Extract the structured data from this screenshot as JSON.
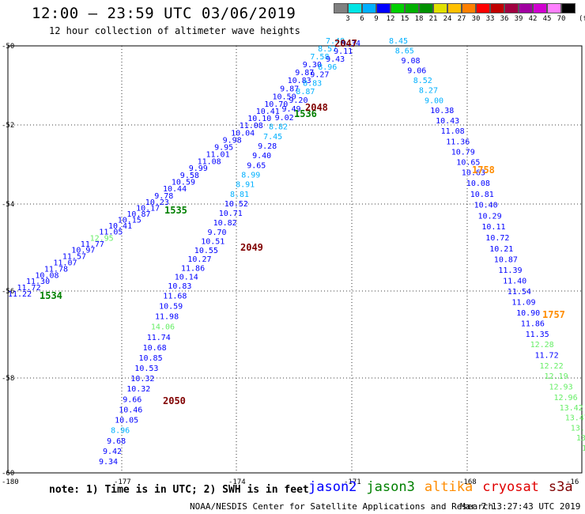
{
  "title": "12:00 — 23:59 UTC 03/06/2019",
  "subtitle": "12 hour collection of altimeter wave heights",
  "legend": {
    "unit": "(ft)",
    "levels": [
      {
        "label": "3",
        "color": "#808080"
      },
      {
        "label": "6",
        "color": "#00e5e5"
      },
      {
        "label": "9",
        "color": "#00b0ff"
      },
      {
        "label": "12",
        "color": "#0000ff"
      },
      {
        "label": "15",
        "color": "#00d000"
      },
      {
        "label": "18",
        "color": "#00b000"
      },
      {
        "label": "21",
        "color": "#009000"
      },
      {
        "label": "24",
        "color": "#e0e000"
      },
      {
        "label": "27",
        "color": "#ffc000"
      },
      {
        "label": "30",
        "color": "#ff8000"
      },
      {
        "label": "33",
        "color": "#ff0000"
      },
      {
        "label": "36",
        "color": "#c00000"
      },
      {
        "label": "39",
        "color": "#a00040"
      },
      {
        "label": "42",
        "color": "#a000a0"
      },
      {
        "label": "45",
        "color": "#d000d0"
      },
      {
        "label": "70",
        "color": "#ff80ff"
      },
      {
        "label": "",
        "color": "#000000"
      }
    ]
  },
  "axes": {
    "lon_ticks": [
      "-180",
      "-177",
      "-174",
      "-171",
      "-168",
      "-16"
    ],
    "lat_ticks": [
      "-50",
      "-52",
      "-54",
      "-56",
      "-58",
      "-60"
    ]
  },
  "tracks": [
    {
      "id": "track-a",
      "points": [
        {
          "v": "11.22",
          "c": "#0000ff"
        },
        {
          "v": "11.72",
          "c": "#0000ff"
        },
        {
          "v": "11.30",
          "c": "#0000ff"
        },
        {
          "v": "10.08",
          "c": "#0000ff"
        },
        {
          "v": "11.78",
          "c": "#0000ff"
        },
        {
          "v": "11.07",
          "c": "#0000ff"
        },
        {
          "v": "11.57",
          "c": "#0000ff"
        },
        {
          "v": "10.97",
          "c": "#0000ff"
        },
        {
          "v": "11.77",
          "c": "#0000ff"
        },
        {
          "v": "12.95",
          "c": "#66ee66"
        },
        {
          "v": "11.05",
          "c": "#0000ff"
        },
        {
          "v": "10.41",
          "c": "#0000ff"
        },
        {
          "v": "10.15",
          "c": "#0000ff"
        },
        {
          "v": "10.87",
          "c": "#0000ff"
        },
        {
          "v": "10.17",
          "c": "#0000ff"
        },
        {
          "v": "10.23",
          "c": "#0000ff"
        },
        {
          "v": "9.78",
          "c": "#0000ff"
        },
        {
          "v": "10.44",
          "c": "#0000ff"
        },
        {
          "v": "10.59",
          "c": "#0000ff"
        },
        {
          "v": "9.58",
          "c": "#0000ff"
        },
        {
          "v": "9.99",
          "c": "#0000ff"
        },
        {
          "v": "11.08",
          "c": "#0000ff"
        },
        {
          "v": "11.01",
          "c": "#0000ff"
        },
        {
          "v": "9.95",
          "c": "#0000ff"
        },
        {
          "v": "9.98",
          "c": "#0000ff"
        },
        {
          "v": "10.04",
          "c": "#0000ff"
        },
        {
          "v": "11.08",
          "c": "#0000ff"
        },
        {
          "v": "10.10",
          "c": "#0000ff"
        },
        {
          "v": "10.41",
          "c": "#0000ff"
        },
        {
          "v": "10.70",
          "c": "#0000ff"
        },
        {
          "v": "10.50",
          "c": "#0000ff"
        },
        {
          "v": "9.87",
          "c": "#0000ff"
        },
        {
          "v": "10.83",
          "c": "#0000ff"
        },
        {
          "v": "9.87",
          "c": "#0000ff"
        },
        {
          "v": "9.30",
          "c": "#0000ff"
        },
        {
          "v": "7.58",
          "c": "#00b0ff"
        },
        {
          "v": "8.57",
          "c": "#00b0ff"
        },
        {
          "v": "7.48",
          "c": "#00b0ff"
        }
      ]
    },
    {
      "id": "track-b",
      "points": [
        {
          "v": "9.34",
          "c": "#0000ff"
        },
        {
          "v": "9.42",
          "c": "#0000ff"
        },
        {
          "v": "9.68",
          "c": "#0000ff"
        },
        {
          "v": "8.96",
          "c": "#00b0ff"
        },
        {
          "v": "10.05",
          "c": "#0000ff"
        },
        {
          "v": "10.46",
          "c": "#0000ff"
        },
        {
          "v": "9.66",
          "c": "#0000ff"
        },
        {
          "v": "10.32",
          "c": "#0000ff"
        },
        {
          "v": "10.32",
          "c": "#0000ff"
        },
        {
          "v": "10.53",
          "c": "#0000ff"
        },
        {
          "v": "10.85",
          "c": "#0000ff"
        },
        {
          "v": "10.68",
          "c": "#0000ff"
        },
        {
          "v": "11.74",
          "c": "#0000ff"
        },
        {
          "v": "14.06",
          "c": "#66ee66"
        },
        {
          "v": "11.98",
          "c": "#0000ff"
        },
        {
          "v": "10.59",
          "c": "#0000ff"
        },
        {
          "v": "11.68",
          "c": "#0000ff"
        },
        {
          "v": "10.83",
          "c": "#0000ff"
        },
        {
          "v": "10.14",
          "c": "#0000ff"
        },
        {
          "v": "11.86",
          "c": "#0000ff"
        },
        {
          "v": "10.27",
          "c": "#0000ff"
        },
        {
          "v": "10.55",
          "c": "#0000ff"
        },
        {
          "v": "10.51",
          "c": "#0000ff"
        },
        {
          "v": "9.70",
          "c": "#0000ff"
        },
        {
          "v": "10.82",
          "c": "#0000ff"
        },
        {
          "v": "10.71",
          "c": "#0000ff"
        },
        {
          "v": "10.52",
          "c": "#0000ff"
        },
        {
          "v": "8.81",
          "c": "#00b0ff"
        },
        {
          "v": "8.91",
          "c": "#00b0ff"
        },
        {
          "v": "8.99",
          "c": "#00b0ff"
        },
        {
          "v": "9.65",
          "c": "#0000ff"
        },
        {
          "v": "9.40",
          "c": "#0000ff"
        },
        {
          "v": "9.28",
          "c": "#0000ff"
        },
        {
          "v": "7.45",
          "c": "#00b0ff"
        },
        {
          "v": "8.82",
          "c": "#00b0ff"
        },
        {
          "v": "9.02",
          "c": "#0000ff"
        },
        {
          "v": "9.49",
          "c": "#0000ff"
        },
        {
          "v": "9.20",
          "c": "#0000ff"
        },
        {
          "v": "8.87",
          "c": "#00b0ff"
        },
        {
          "v": "8.83",
          "c": "#00b0ff"
        },
        {
          "v": "9.27",
          "c": "#0000ff"
        },
        {
          "v": "8.96",
          "c": "#00b0ff"
        },
        {
          "v": "9.43",
          "c": "#0000ff"
        },
        {
          "v": "9.11",
          "c": "#0000ff"
        },
        {
          "v": "9.34",
          "c": "#0000ff"
        }
      ]
    },
    {
      "id": "track-c",
      "points": [
        {
          "v": "8.45",
          "c": "#00b0ff"
        },
        {
          "v": "8.65",
          "c": "#00b0ff"
        },
        {
          "v": "9.08",
          "c": "#0000ff"
        },
        {
          "v": "9.06",
          "c": "#0000ff"
        },
        {
          "v": "8.52",
          "c": "#00b0ff"
        },
        {
          "v": "8.27",
          "c": "#00b0ff"
        },
        {
          "v": "9.00",
          "c": "#00b0ff"
        },
        {
          "v": "10.38",
          "c": "#0000ff"
        },
        {
          "v": "10.43",
          "c": "#0000ff"
        },
        {
          "v": "11.08",
          "c": "#0000ff"
        },
        {
          "v": "11.36",
          "c": "#0000ff"
        },
        {
          "v": "10.79",
          "c": "#0000ff"
        },
        {
          "v": "10.65",
          "c": "#0000ff"
        },
        {
          "v": "10.63",
          "c": "#0000ff"
        },
        {
          "v": "10.08",
          "c": "#0000ff"
        },
        {
          "v": "10.81",
          "c": "#0000ff"
        },
        {
          "v": "10.40",
          "c": "#0000ff"
        },
        {
          "v": "10.29",
          "c": "#0000ff"
        },
        {
          "v": "10.11",
          "c": "#0000ff"
        },
        {
          "v": "10.72",
          "c": "#0000ff"
        },
        {
          "v": "10.21",
          "c": "#0000ff"
        },
        {
          "v": "10.87",
          "c": "#0000ff"
        },
        {
          "v": "11.39",
          "c": "#0000ff"
        },
        {
          "v": "11.40",
          "c": "#0000ff"
        },
        {
          "v": "11.54",
          "c": "#0000ff"
        },
        {
          "v": "11.09",
          "c": "#0000ff"
        },
        {
          "v": "10.90",
          "c": "#0000ff"
        },
        {
          "v": "11.86",
          "c": "#0000ff"
        },
        {
          "v": "11.35",
          "c": "#0000ff"
        },
        {
          "v": "12.28",
          "c": "#66ee66"
        },
        {
          "v": "11.72",
          "c": "#0000ff"
        },
        {
          "v": "12.22",
          "c": "#66ee66"
        },
        {
          "v": "12.19",
          "c": "#66ee66"
        },
        {
          "v": "12.93",
          "c": "#66ee66"
        },
        {
          "v": "12.96",
          "c": "#66ee66"
        },
        {
          "v": "13.42",
          "c": "#66ee66"
        },
        {
          "v": "13.47",
          "c": "#66ee66"
        },
        {
          "v": "13.3",
          "c": "#66ee66"
        },
        {
          "v": "13.",
          "c": "#66ee66"
        },
        {
          "v": "1",
          "c": "#66ee66"
        }
      ]
    }
  ],
  "pass_times": [
    {
      "t": "1534",
      "c": "#008000"
    },
    {
      "t": "1535",
      "c": "#008000"
    },
    {
      "t": "1536",
      "c": "#008000"
    },
    {
      "t": "2047",
      "c": "#800000"
    },
    {
      "t": "2048",
      "c": "#800000"
    },
    {
      "t": "2049",
      "c": "#800000"
    },
    {
      "t": "2050",
      "c": "#800000"
    },
    {
      "t": "1758",
      "c": "#ff8c00"
    },
    {
      "t": "1757",
      "c": "#ff8c00"
    }
  ],
  "note": "note: 1) Time is in UTC; 2) SWH is in feet",
  "satellites": [
    {
      "name": "jason2",
      "color": "#0000ff"
    },
    {
      "name": "jason3",
      "color": "#008000"
    },
    {
      "name": "altika",
      "color": "#ff8c00"
    },
    {
      "name": "cryosat",
      "color": "#e00000"
    },
    {
      "name": "s3a",
      "color": "#800000"
    }
  ],
  "credit": "NOAA/NESDIS Center for Satellite Applications and Research",
  "timestamp": "Mar  7 13:27:43 UTC 2019"
}
